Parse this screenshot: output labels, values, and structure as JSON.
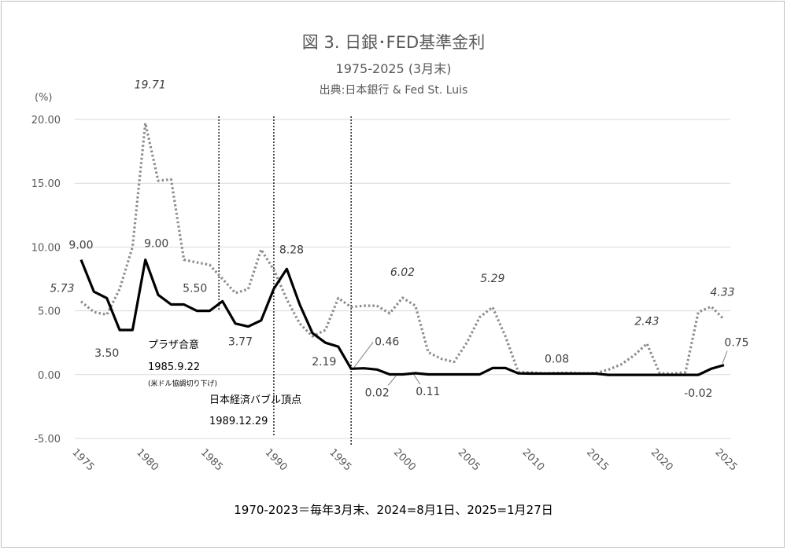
{
  "chart_data": {
    "type": "line",
    "title": "図 3. 日銀･FED基準金利",
    "subtitle": "1975-2025 (3月末)",
    "source": "出典:日本銀行 & Fed St. Luis",
    "ylabel": "(%)",
    "ylim": [
      -5,
      20
    ],
    "yticks": [
      "20.00",
      "15.00",
      "10.00",
      "5.00",
      "0.00",
      "-5.00"
    ],
    "xlim": [
      1975,
      2025
    ],
    "xticks": [
      "1975",
      "1980",
      "1985",
      "1990",
      "1995",
      "2000",
      "2005",
      "2010",
      "2015",
      "2020",
      "2025"
    ],
    "grid": true,
    "footnote": "1970-2023＝毎年3月末、2024=8月1日、2025=1月27日",
    "x": [
      1975,
      1976,
      1977,
      1978,
      1979,
      1980,
      1981,
      1982,
      1983,
      1984,
      1985,
      1986,
      1987,
      1988,
      1989,
      1990,
      1991,
      1992,
      1993,
      1994,
      1995,
      1996,
      1997,
      1998,
      1999,
      2000,
      2001,
      2002,
      2003,
      2004,
      2005,
      2006,
      2007,
      2008,
      2009,
      2010,
      2011,
      2012,
      2013,
      2014,
      2015,
      2016,
      2017,
      2018,
      2019,
      2020,
      2021,
      2022,
      2023,
      2024,
      2025
    ],
    "series": [
      {
        "style": "solid-black",
        "values": [
          9.0,
          6.5,
          6.0,
          3.5,
          3.5,
          9.0,
          6.25,
          5.5,
          5.5,
          5.0,
          5.0,
          5.75,
          4.0,
          3.77,
          4.25,
          6.75,
          8.28,
          5.5,
          3.25,
          2.5,
          2.19,
          0.46,
          0.5,
          0.4,
          0.02,
          0.02,
          0.11,
          0.02,
          0.02,
          0.02,
          0.02,
          0.02,
          0.52,
          0.52,
          0.1,
          0.08,
          0.08,
          0.08,
          0.08,
          0.08,
          0.08,
          -0.02,
          -0.02,
          -0.02,
          -0.02,
          -0.02,
          -0.02,
          -0.02,
          -0.02,
          0.46,
          0.75
        ]
      },
      {
        "style": "dotted-gray",
        "values": [
          5.73,
          4.9,
          4.7,
          6.7,
          10.0,
          19.71,
          15.2,
          15.3,
          9.0,
          8.8,
          8.6,
          7.5,
          6.4,
          6.7,
          9.8,
          8.2,
          5.9,
          4.0,
          3.0,
          3.5,
          6.0,
          5.3,
          5.4,
          5.4,
          4.8,
          6.02,
          5.4,
          1.75,
          1.25,
          1.0,
          2.5,
          4.5,
          5.29,
          3.0,
          0.2,
          0.18,
          0.1,
          0.13,
          0.15,
          0.1,
          0.12,
          0.38,
          0.8,
          1.5,
          2.43,
          0.1,
          0.08,
          0.2,
          4.9,
          5.33,
          4.33
        ]
      }
    ],
    "data_labels": [
      {
        "text": "9.00",
        "x": 1975,
        "y": 9.0,
        "italic": false
      },
      {
        "text": "5.73",
        "x": 1975,
        "y": 5.73,
        "italic": true
      },
      {
        "text": "3.50",
        "x": 1977,
        "y": 3.5,
        "italic": false
      },
      {
        "text": "19.71",
        "x": 1980,
        "y": 19.71,
        "italic": true
      },
      {
        "text": "9.00",
        "x": 1980,
        "y": 9.0,
        "italic": false
      },
      {
        "text": "5.50",
        "x": 1983,
        "y": 5.5,
        "italic": false
      },
      {
        "text": "3.77",
        "x": 1988,
        "y": 3.77,
        "italic": false
      },
      {
        "text": "8.28",
        "x": 1991,
        "y": 8.28,
        "italic": false
      },
      {
        "text": "2.19",
        "x": 1995,
        "y": 2.19,
        "italic": false
      },
      {
        "text": "0.46",
        "x": 1996,
        "y": 0.46,
        "italic": false
      },
      {
        "text": "6.02",
        "x": 2000,
        "y": 6.02,
        "italic": true
      },
      {
        "text": "0.02",
        "x": 1999,
        "y": 0.02,
        "italic": false
      },
      {
        "text": "0.11",
        "x": 2001,
        "y": 0.11,
        "italic": false
      },
      {
        "text": "5.29",
        "x": 2007,
        "y": 5.29,
        "italic": true
      },
      {
        "text": "0.08",
        "x": 2012,
        "y": 0.08,
        "italic": false
      },
      {
        "text": "2.43",
        "x": 2019,
        "y": 2.43,
        "italic": true
      },
      {
        "text": "-0.02",
        "x": 2023,
        "y": -0.02,
        "italic": false
      },
      {
        "text": "4.33",
        "x": 2025,
        "y": 4.33,
        "italic": true
      },
      {
        "text": "0.75",
        "x": 2025,
        "y": 0.75,
        "italic": false
      }
    ],
    "vlines": [
      1985.72,
      1989.99,
      1996.0
    ],
    "annotations": [
      {
        "text": "プラザ合意",
        "x": 1985.72,
        "role": "event"
      },
      {
        "text": "1985.9.22",
        "x": 1985.72,
        "role": "date"
      },
      {
        "text": "(米ドル協調切り下げ)",
        "x": 1985.72,
        "role": "note"
      },
      {
        "text": "日本経済バブル頂点",
        "x": 1989.99,
        "role": "event"
      },
      {
        "text": "1989.12.29",
        "x": 1989.99,
        "role": "date"
      }
    ]
  }
}
